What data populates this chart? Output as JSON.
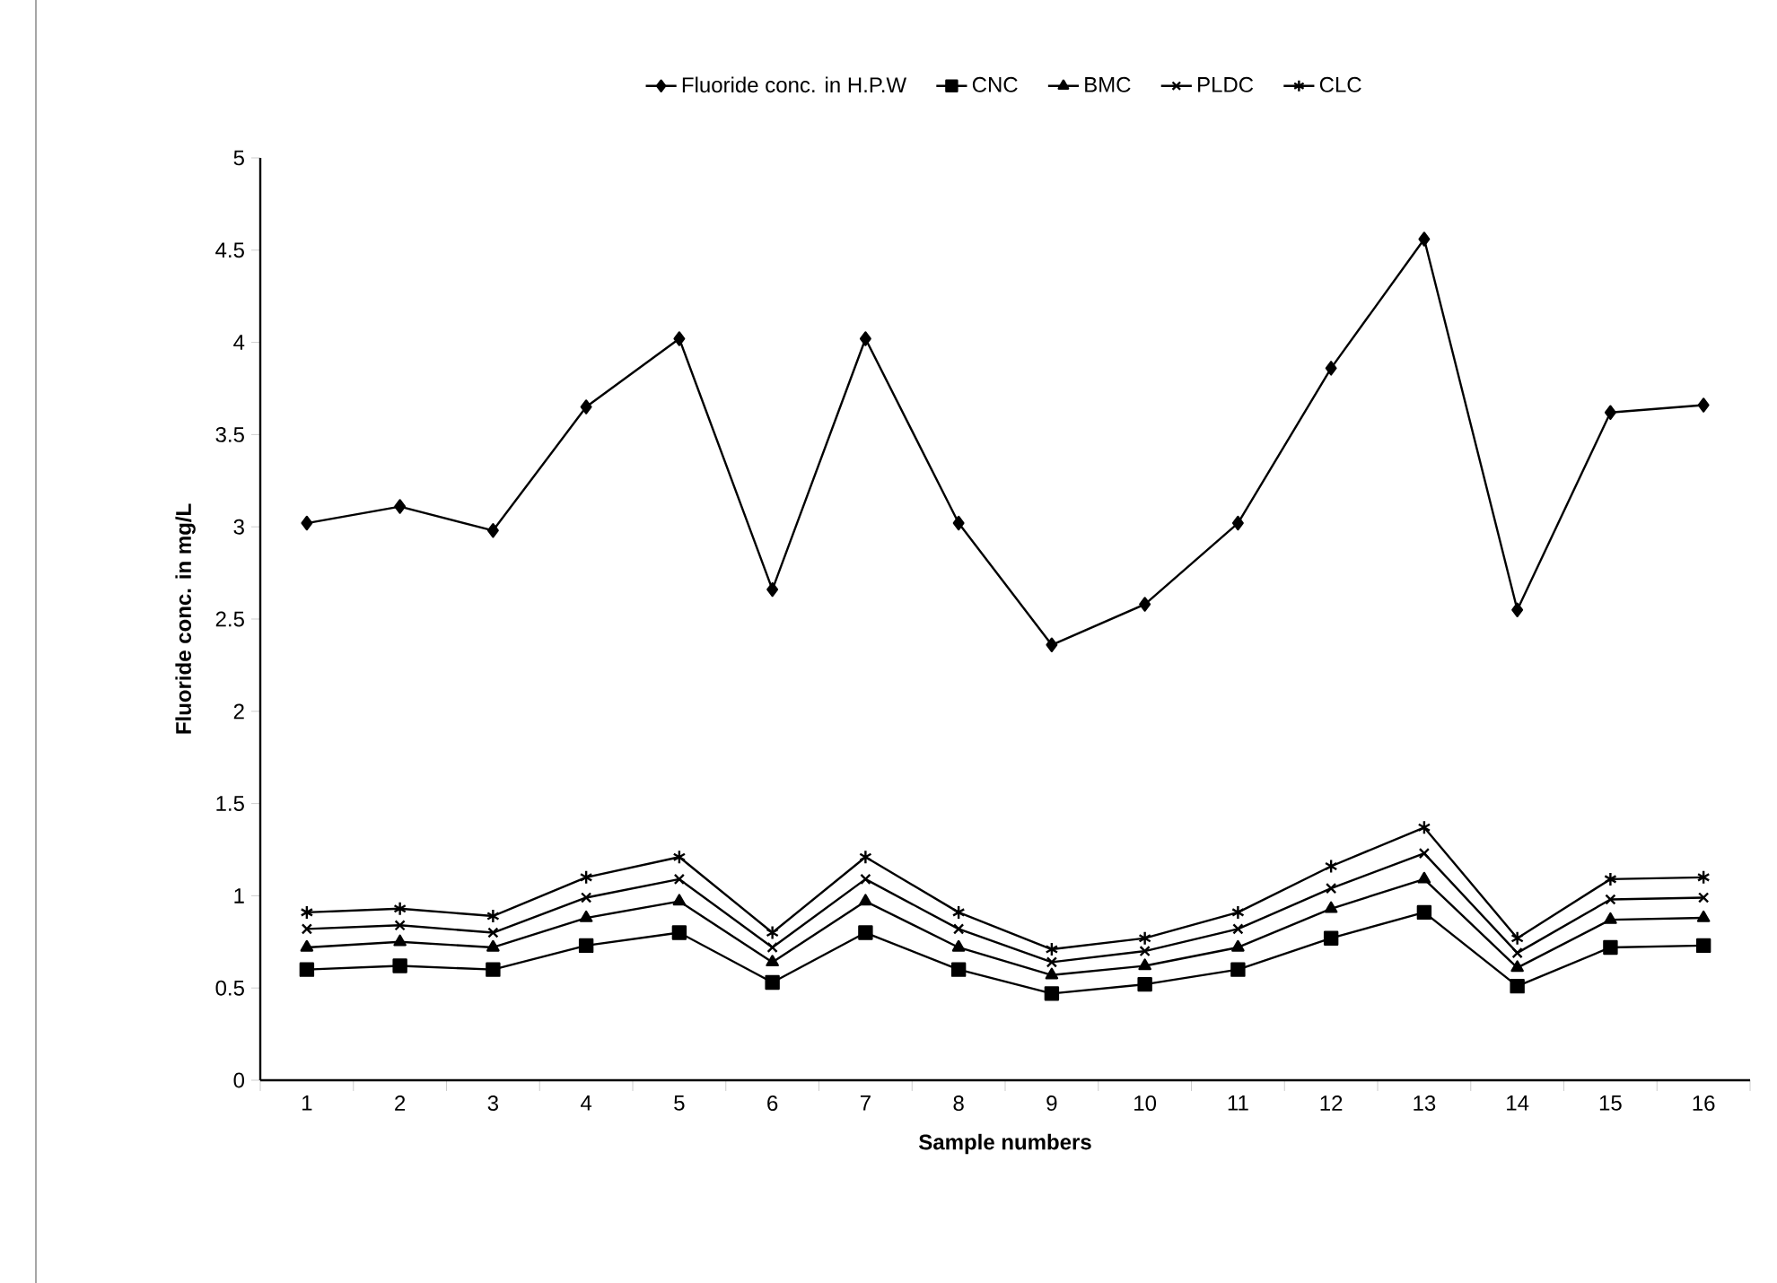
{
  "chart_data": {
    "type": "line",
    "xlabel": "Sample numbers",
    "ylabel": "Fluoride conc. in mg/L",
    "categories": [
      "1",
      "2",
      "3",
      "4",
      "5",
      "6",
      "7",
      "8",
      "9",
      "10",
      "11",
      "12",
      "13",
      "14",
      "15",
      "16"
    ],
    "series": [
      {
        "name": "Fluoride conc. in H.P.W",
        "color": "#000000",
        "marker": "diamond",
        "values": [
          3.02,
          3.11,
          2.98,
          3.65,
          4.02,
          2.66,
          4.02,
          3.02,
          2.36,
          2.58,
          3.02,
          3.86,
          4.56,
          2.55,
          3.62,
          3.66
        ]
      },
      {
        "name": "CNC",
        "color": "#000000",
        "marker": "square",
        "values": [
          0.6,
          0.62,
          0.6,
          0.73,
          0.8,
          0.53,
          0.8,
          0.6,
          0.47,
          0.52,
          0.6,
          0.77,
          0.91,
          0.51,
          0.72,
          0.73
        ]
      },
      {
        "name": "BMC",
        "color": "#000000",
        "marker": "triangle",
        "values": [
          0.72,
          0.75,
          0.72,
          0.88,
          0.97,
          0.64,
          0.97,
          0.72,
          0.57,
          0.62,
          0.72,
          0.93,
          1.09,
          0.61,
          0.87,
          0.88
        ]
      },
      {
        "name": "PLDC",
        "color": "#000000",
        "marker": "cross",
        "values": [
          0.82,
          0.84,
          0.8,
          0.99,
          1.09,
          0.72,
          1.09,
          0.82,
          0.64,
          0.7,
          0.82,
          1.04,
          1.23,
          0.69,
          0.98,
          0.99
        ]
      },
      {
        "name": "CLC",
        "color": "#000000",
        "marker": "cross",
        "values": [
          0.91,
          0.93,
          0.89,
          1.1,
          1.21,
          0.8,
          1.21,
          0.91,
          0.71,
          0.77,
          0.91,
          1.16,
          1.37,
          0.77,
          1.09,
          1.1
        ]
      }
    ],
    "ylim": [
      0,
      5
    ],
    "yticks": [
      0,
      0.5,
      1,
      1.5,
      2,
      2.5,
      3,
      3.5,
      4,
      4.5,
      5
    ],
    "grid": false,
    "legend": "top",
    "line_style": "solid"
  }
}
